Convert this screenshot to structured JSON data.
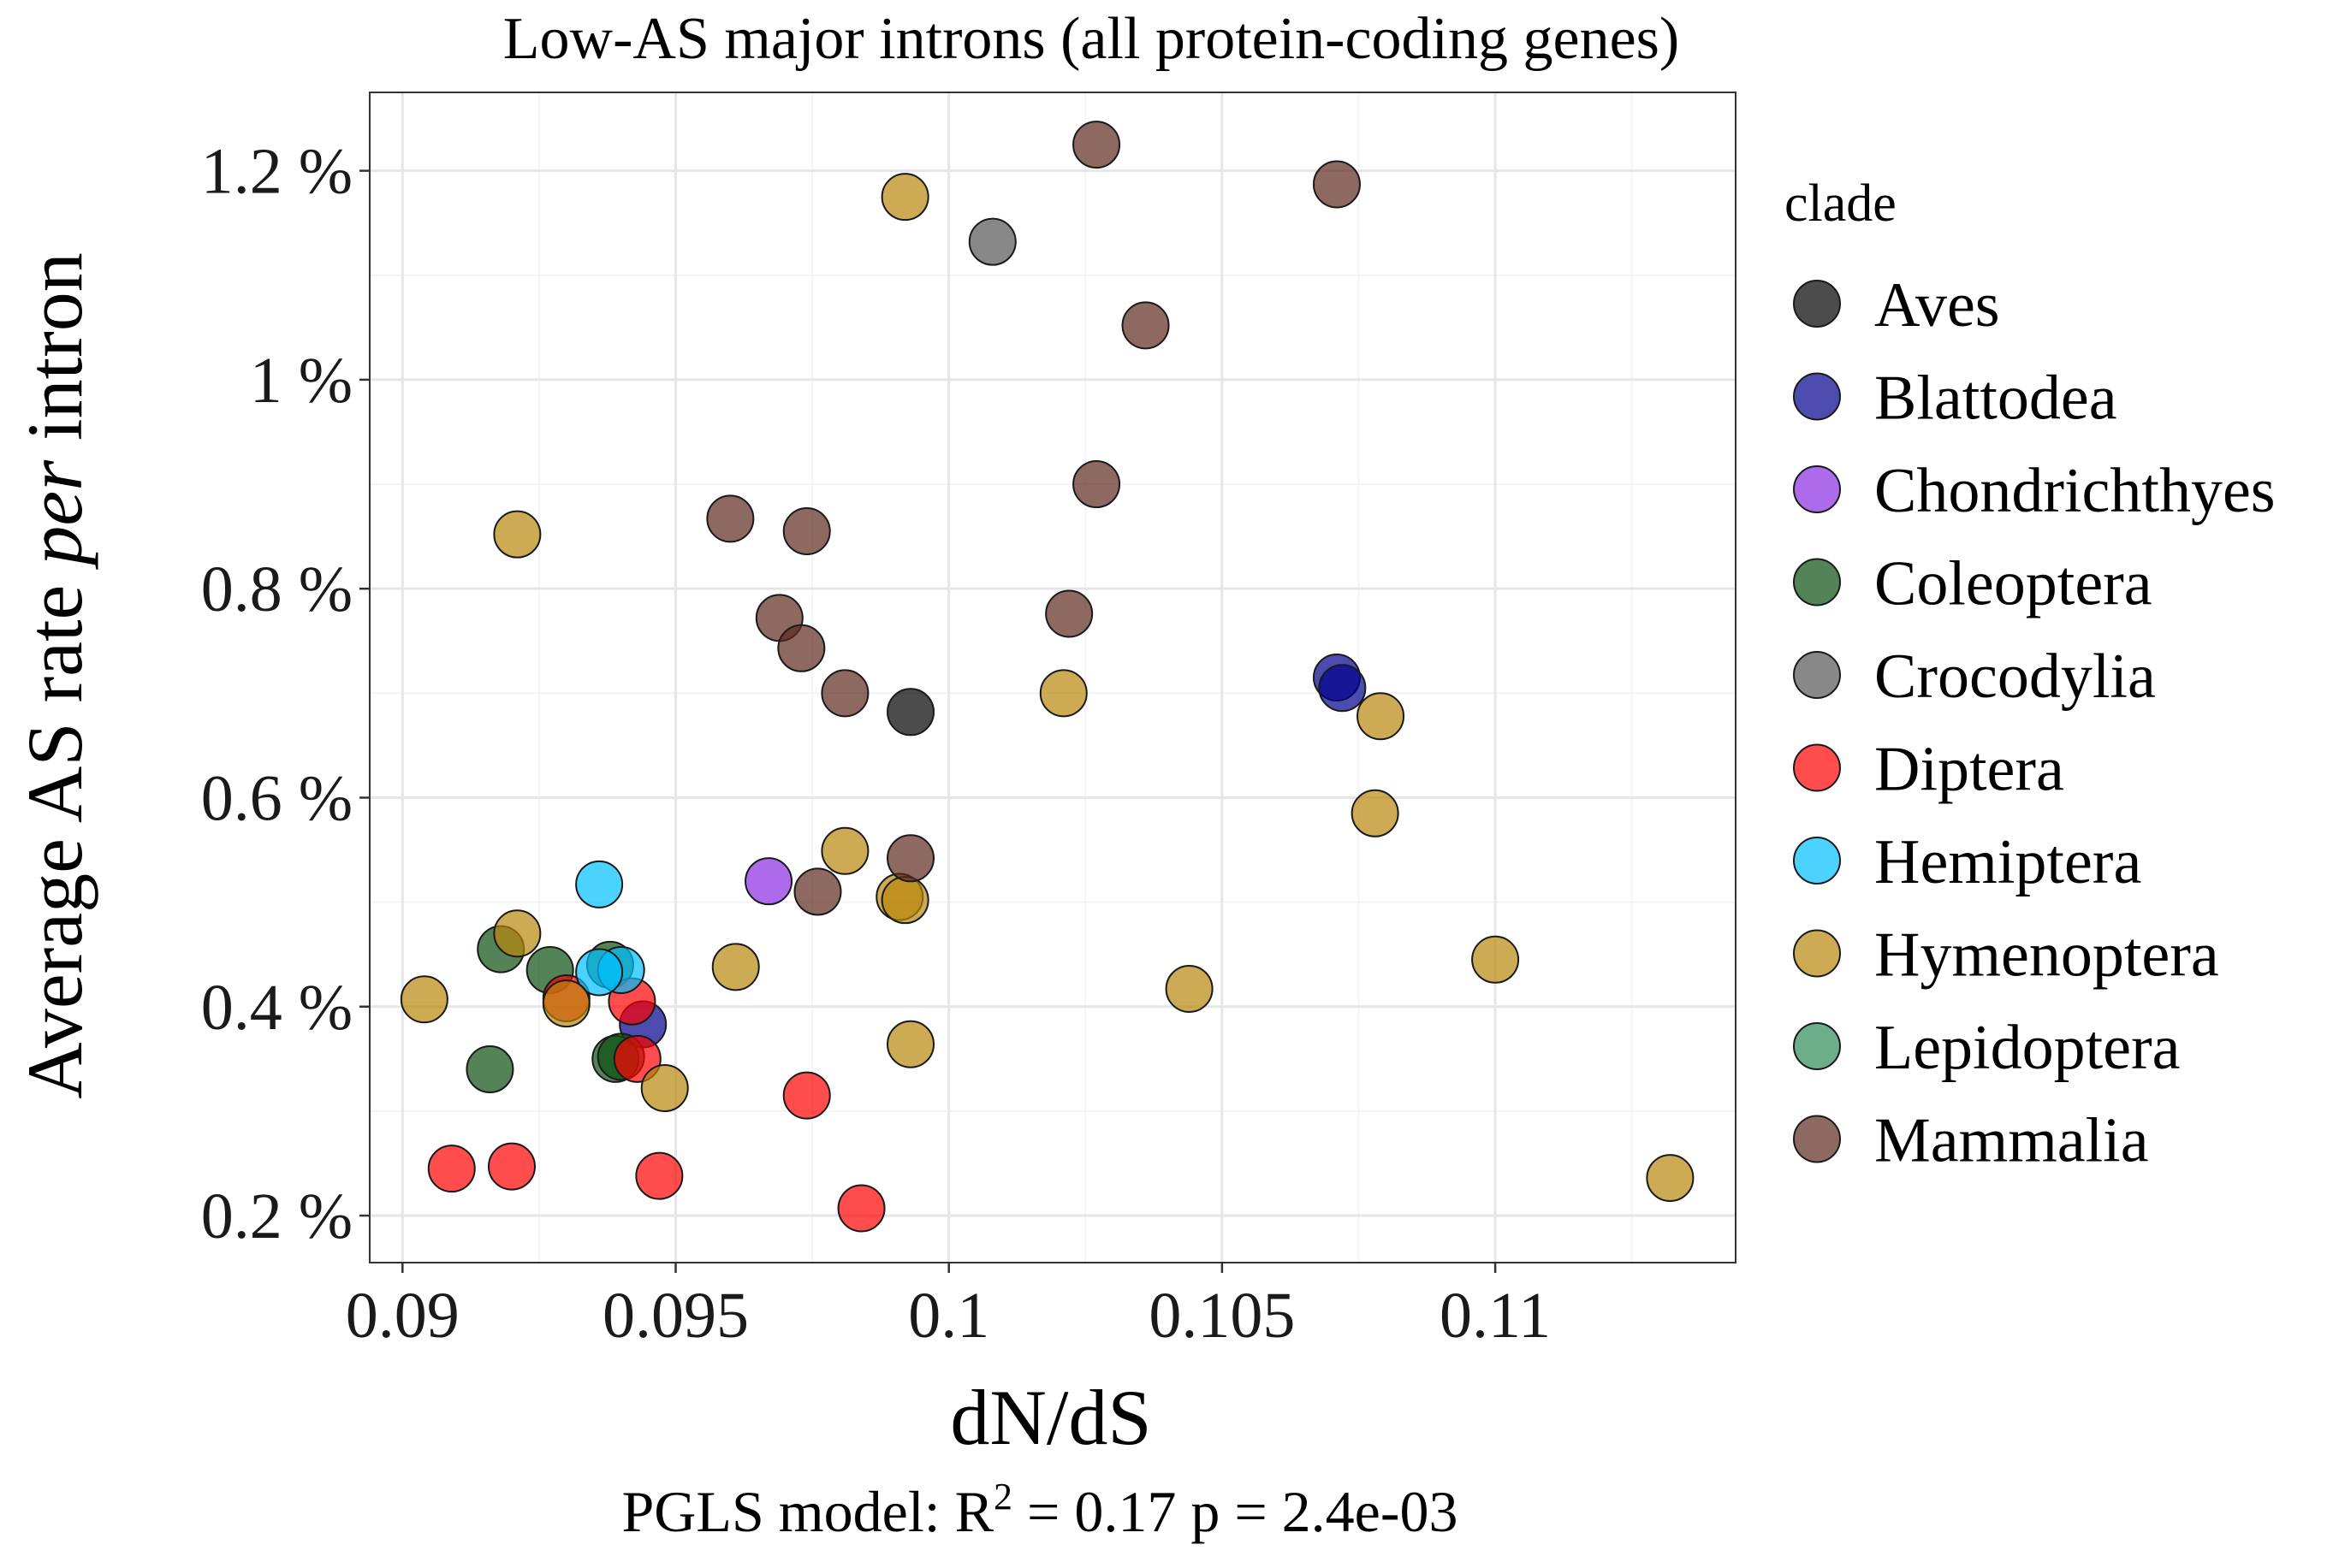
{
  "chart_data": {
    "type": "scatter",
    "title": "Low-AS major introns (all protein-coding genes)",
    "xlabel": "dN/dS",
    "ylabel": {
      "before": "Average AS rate ",
      "italic": "per",
      "after": " intron"
    },
    "xlim": [
      0.0894,
      0.1144
    ],
    "ylim": [
      0.155,
      1.275
    ],
    "xticks": [
      0.09,
      0.095,
      0.1,
      0.105,
      0.11
    ],
    "xtick_labels": [
      "0.09",
      "0.095",
      "0.1",
      "0.105",
      "0.11"
    ],
    "yticks": [
      0.2,
      0.4,
      0.6,
      0.8,
      1.0,
      1.2
    ],
    "ytick_labels": [
      "0.2 %",
      "0.4 %",
      "0.6 %",
      "0.8 %",
      "1 %",
      "1.2 %"
    ],
    "grid": true,
    "legend_position": "right",
    "legend_title": "clade",
    "caption": {
      "prefix": "PGLS model: R",
      "sup": "2",
      "suffix": " = 0.17    p = 2.4e-03"
    },
    "series": [
      {
        "name": "Aves",
        "color": "#000000",
        "points": [
          [
            0.0993,
            0.682
          ]
        ]
      },
      {
        "name": "Blattodea",
        "color": "#00008b",
        "points": [
          [
            0.1071,
            0.715
          ],
          [
            0.1072,
            0.705
          ],
          [
            0.0944,
            0.383
          ]
        ]
      },
      {
        "name": "Chondrichthyes",
        "color": "#8a2be2",
        "points": [
          [
            0.0967,
            0.52
          ]
        ]
      },
      {
        "name": "Coleoptera",
        "color": "#0b4f10",
        "points": [
          [
            0.0918,
            0.455
          ],
          [
            0.0927,
            0.435
          ],
          [
            0.0938,
            0.44
          ],
          [
            0.0939,
            0.35
          ],
          [
            0.094,
            0.352
          ],
          [
            0.0916,
            0.34
          ]
        ]
      },
      {
        "name": "Crocodylia",
        "color": "#555555",
        "points": [
          [
            0.1008,
            1.132
          ]
        ]
      },
      {
        "name": "Diptera",
        "color": "#ff0000",
        "points": [
          [
            0.093,
            0.408
          ],
          [
            0.0942,
            0.405
          ],
          [
            0.0943,
            0.35
          ],
          [
            0.0974,
            0.315
          ],
          [
            0.0909,
            0.245
          ],
          [
            0.092,
            0.247
          ],
          [
            0.0947,
            0.238
          ],
          [
            0.0984,
            0.207
          ]
        ]
      },
      {
        "name": "Hemiptera",
        "color": "#00bfff",
        "points": [
          [
            0.0936,
            0.517
          ],
          [
            0.094,
            0.435
          ],
          [
            0.0936,
            0.433
          ]
        ]
      },
      {
        "name": "Hymenoptera",
        "color": "#b8860b",
        "points": [
          [
            0.0992,
            1.175
          ],
          [
            0.0921,
            0.852
          ],
          [
            0.1021,
            0.7
          ],
          [
            0.1079,
            0.678
          ],
          [
            0.1078,
            0.585
          ],
          [
            0.0981,
            0.549
          ],
          [
            0.0991,
            0.505
          ],
          [
            0.0992,
            0.502
          ],
          [
            0.0921,
            0.47
          ],
          [
            0.0961,
            0.438
          ],
          [
            0.0904,
            0.407
          ],
          [
            0.093,
            0.403
          ],
          [
            0.11,
            0.445
          ],
          [
            0.1044,
            0.417
          ],
          [
            0.0993,
            0.364
          ],
          [
            0.0948,
            0.322
          ],
          [
            0.1132,
            0.236
          ]
        ]
      },
      {
        "name": "Lepidoptera",
        "color": "#2e8b57",
        "points": []
      },
      {
        "name": "Mammalia",
        "color": "#5e2a1e",
        "points": [
          [
            0.1027,
            1.225
          ],
          [
            0.1071,
            1.187
          ],
          [
            0.1036,
            1.052
          ],
          [
            0.1027,
            0.9
          ],
          [
            0.096,
            0.867
          ],
          [
            0.0974,
            0.855
          ],
          [
            0.0969,
            0.772
          ],
          [
            0.1022,
            0.776
          ],
          [
            0.0973,
            0.743
          ],
          [
            0.0981,
            0.7
          ],
          [
            0.0993,
            0.542
          ],
          [
            0.0976,
            0.51
          ]
        ]
      }
    ]
  }
}
